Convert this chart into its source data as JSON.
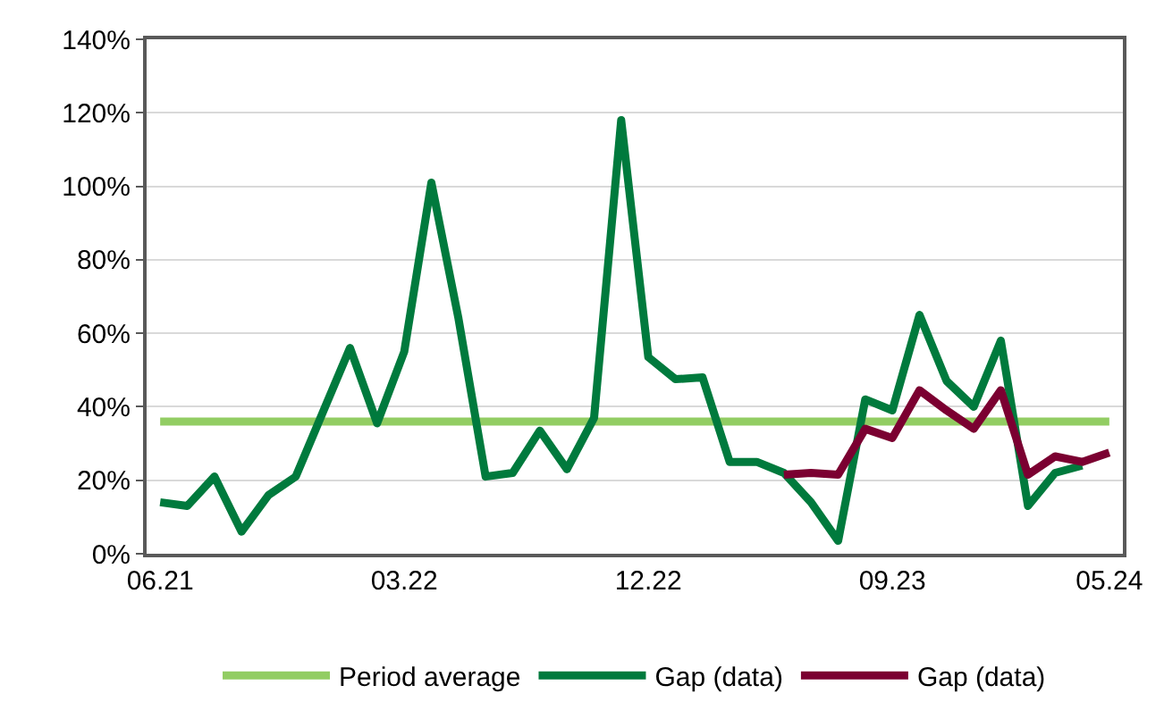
{
  "chart_data": {
    "type": "line",
    "categories": [
      "06.21",
      null,
      null,
      null,
      null,
      null,
      null,
      null,
      null,
      "03.22",
      null,
      null,
      null,
      null,
      null,
      null,
      null,
      null,
      "12.22",
      null,
      null,
      null,
      null,
      null,
      null,
      null,
      null,
      "09.23",
      null,
      null,
      null,
      null,
      null,
      null,
      null,
      "05.24"
    ],
    "series": [
      {
        "name": "Period average",
        "color": "#92cd63",
        "values": [
          36,
          36,
          36,
          36,
          36,
          36,
          36,
          36,
          36,
          36,
          36,
          36,
          36,
          36,
          36,
          36,
          36,
          36,
          36,
          36,
          36,
          36,
          36,
          36,
          36,
          36,
          36,
          36,
          36,
          36,
          36,
          36,
          36,
          36,
          36,
          36
        ]
      },
      {
        "name": "Gap (data)",
        "color": "#007a3d",
        "values": [
          14,
          13,
          21,
          6,
          16,
          21,
          38.5,
          56,
          35.5,
          55,
          101,
          64,
          21,
          22,
          33.5,
          23,
          37,
          118,
          53.5,
          47.5,
          48,
          25,
          25,
          22,
          14,
          3.5,
          42,
          39,
          65,
          47,
          40,
          58,
          13,
          22,
          24,
          null
        ]
      },
      {
        "name": "Gap (data)",
        "color": "#7b0031",
        "values": [
          null,
          null,
          null,
          null,
          null,
          null,
          null,
          null,
          null,
          null,
          null,
          null,
          null,
          null,
          null,
          null,
          null,
          null,
          null,
          null,
          null,
          null,
          null,
          21.5,
          22,
          21.5,
          34,
          31.5,
          44.5,
          39,
          34,
          44.5,
          21.5,
          26.5,
          25,
          27.5
        ]
      }
    ],
    "ylim": [
      0,
      140
    ],
    "yticks": [
      {
        "value": 0,
        "label": "0%"
      },
      {
        "value": 20,
        "label": "20%"
      },
      {
        "value": 40,
        "label": "40%"
      },
      {
        "value": 60,
        "label": "60%"
      },
      {
        "value": 80,
        "label": "80%"
      },
      {
        "value": 100,
        "label": "100%"
      },
      {
        "value": 120,
        "label": "120%"
      },
      {
        "value": 140,
        "label": "140%"
      }
    ],
    "grid": "y",
    "legend": "bottom",
    "marker": "none",
    "line_style": "solid"
  }
}
